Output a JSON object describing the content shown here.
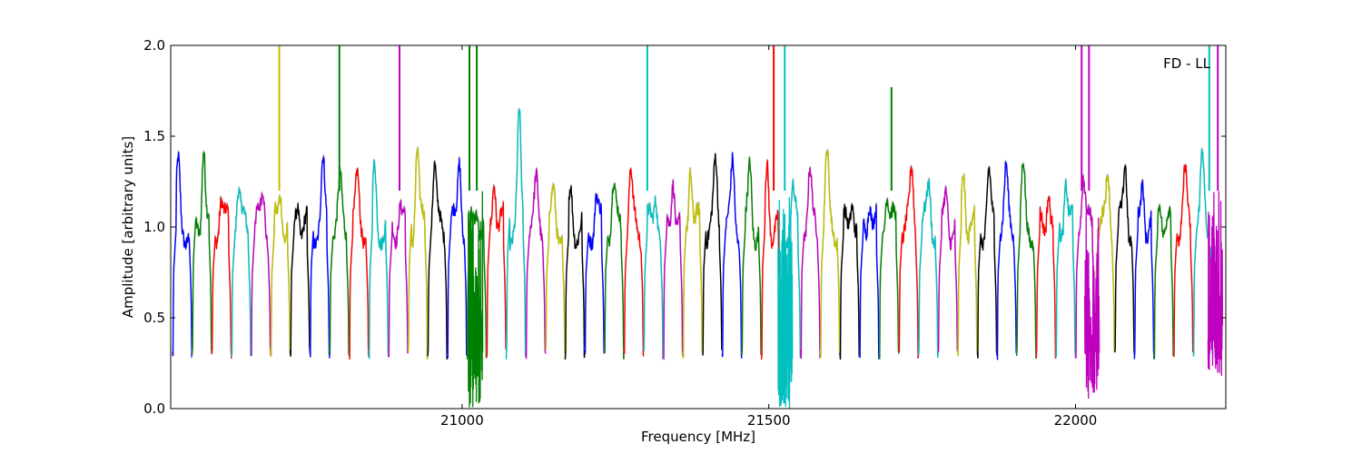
{
  "chart_data": {
    "type": "line",
    "title": "",
    "xlabel": "Frequency [MHz]",
    "ylabel": "Amplitude [arbitrary units]",
    "xlim": [
      20525,
      22245
    ],
    "ylim": [
      0.0,
      2.0
    ],
    "grid": false,
    "annotation": "FD - LL",
    "x_ticks": [
      {
        "value": 21000,
        "label": "21000"
      },
      {
        "value": 21500,
        "label": "21500"
      },
      {
        "value": 22000,
        "label": "22000"
      }
    ],
    "y_ticks": [
      {
        "value": 0.0,
        "label": "0.0"
      },
      {
        "value": 0.5,
        "label": "0.5"
      },
      {
        "value": 1.0,
        "label": "1.0"
      },
      {
        "value": 1.5,
        "label": "1.5"
      },
      {
        "value": 2.0,
        "label": "2.0"
      }
    ],
    "color_cycle": [
      "#0000ff",
      "#008000",
      "#ff0000",
      "#00bfbf",
      "#bf00bf",
      "#bfbf00",
      "#000000"
    ],
    "background_trace_color": "#c0c0c0",
    "channel_width_mhz": 32,
    "channel_start_mhz": 20528,
    "channel_count": 53,
    "channel_peak_amplitudes": [
      1.35,
      1.55,
      1.23,
      1.24,
      1.25,
      1.26,
      1.24,
      1.35,
      1.25,
      1.27,
      1.34,
      1.2,
      1.48,
      1.35,
      1.45,
      1.2,
      1.38,
      1.6,
      1.25,
      1.21,
      1.24,
      1.22,
      1.26,
      1.29,
      1.27,
      1.38,
      1.44,
      1.35,
      1.36,
      1.38,
      1.41,
      1.23,
      1.3,
      1.39,
      1.26,
      1.25,
      1.28,
      1.32,
      1.26,
      1.26,
      1.4,
      1.3,
      1.3,
      1.32,
      1.31,
      1.35,
      1.34,
      1.31,
      1.41,
      1.34,
      1.26,
      1.3,
      1.39
    ],
    "rfi_spikes": [
      {
        "x": 20702,
        "y": 2.0
      },
      {
        "x": 20800,
        "y": 2.0
      },
      {
        "x": 20898,
        "y": 2.0
      },
      {
        "x": 21012,
        "y": 2.0
      },
      {
        "x": 21024,
        "y": 2.0
      },
      {
        "x": 21302,
        "y": 2.0
      },
      {
        "x": 21508,
        "y": 2.0
      },
      {
        "x": 21526,
        "y": 2.0
      },
      {
        "x": 21700,
        "y": 1.77
      },
      {
        "x": 22010,
        "y": 2.0
      },
      {
        "x": 22022,
        "y": 2.0
      },
      {
        "x": 22218,
        "y": 2.0
      },
      {
        "x": 22232,
        "y": 2.0
      }
    ],
    "deep_dips": [
      {
        "x": 21022,
        "y": 0.0
      },
      {
        "x": 21527,
        "y": 0.0
      },
      {
        "x": 22027,
        "y": 0.05
      },
      {
        "x": 22228,
        "y": 0.18
      }
    ]
  }
}
